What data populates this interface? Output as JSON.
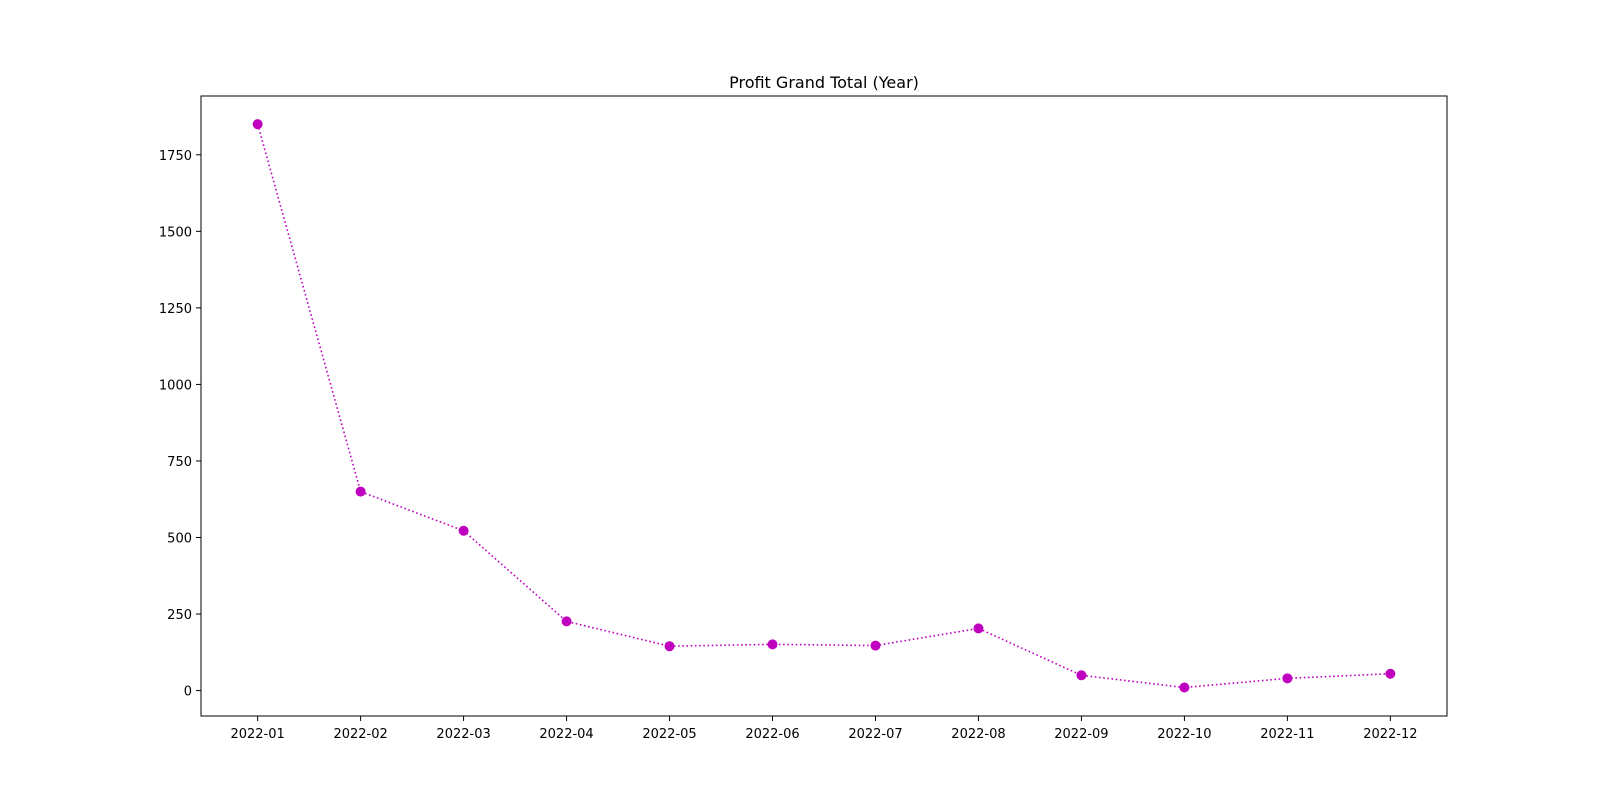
{
  "chart_data": {
    "type": "line",
    "title": "Profit Grand Total (Year)",
    "xlabel": "",
    "ylabel": "",
    "categories": [
      "2022-01",
      "2022-02",
      "2022-03",
      "2022-04",
      "2022-05",
      "2022-06",
      "2022-07",
      "2022-08",
      "2022-09",
      "2022-10",
      "2022-11",
      "2022-12"
    ],
    "series": [
      {
        "values": [
          1850,
          650,
          522,
          226,
          145,
          151,
          147,
          203,
          50,
          10,
          40,
          55
        ],
        "color": "#bf00bf",
        "line_style": "dotted",
        "marker": "circle"
      }
    ],
    "yticks": [
      0,
      250,
      500,
      750,
      1000,
      1250,
      1500,
      1750
    ],
    "ylim": [
      -83,
      1942
    ],
    "grid": false,
    "legend": "none"
  }
}
